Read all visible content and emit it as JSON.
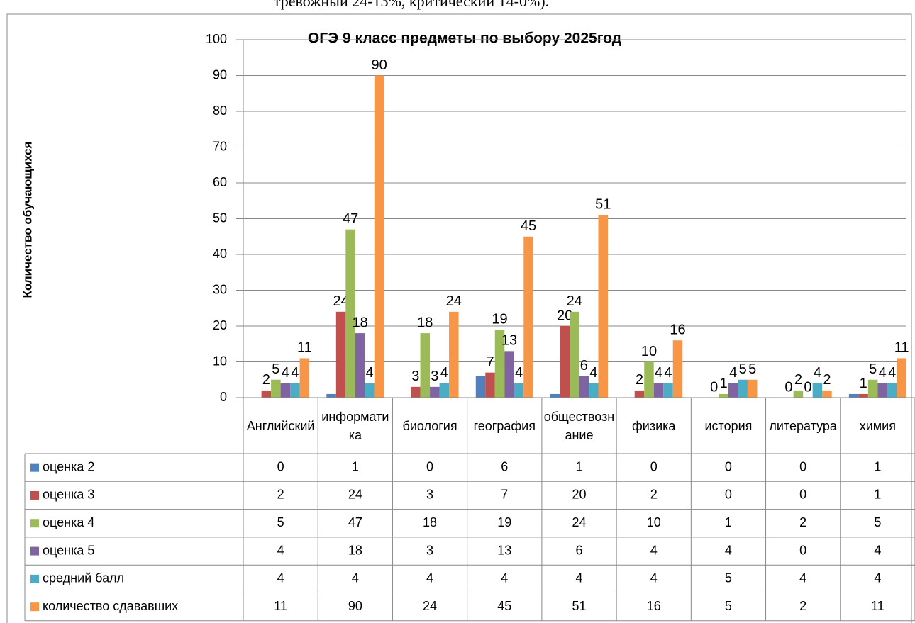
{
  "header_text": "тревожный 24-13%, критический 14-0%).",
  "chart_data": {
    "type": "bar",
    "title": "ОГЭ 9 класс предметы по выбору 2025год",
    "y_label": "Количество обучающихся",
    "categories": [
      "Английский",
      "информатика",
      "биология",
      "география",
      "обществознание",
      "физика",
      "история",
      "литература",
      "химия"
    ],
    "series": [
      {
        "name": "оценка 2",
        "color": "#4f81bd",
        "show_labels": false,
        "values": [
          0,
          1,
          0,
          6,
          1,
          0,
          0,
          0,
          1
        ]
      },
      {
        "name": "оценка 3",
        "color": "#c0504d",
        "show_labels": true,
        "values": [
          2,
          24,
          3,
          7,
          20,
          2,
          0,
          0,
          1
        ]
      },
      {
        "name": "оценка 4",
        "color": "#9bbb59",
        "show_labels": true,
        "values": [
          5,
          47,
          18,
          19,
          24,
          10,
          1,
          2,
          5
        ]
      },
      {
        "name": "оценка 5",
        "color": "#8064a2",
        "show_labels": true,
        "values": [
          4,
          18,
          3,
          13,
          6,
          4,
          4,
          0,
          4
        ]
      },
      {
        "name": "средний балл",
        "color": "#4bacc6",
        "show_labels": true,
        "values": [
          4,
          4,
          4,
          4,
          4,
          4,
          5,
          4,
          4
        ]
      },
      {
        "name": "количество сдававших",
        "color": "#f79646",
        "show_labels": true,
        "values": [
          11,
          90,
          24,
          45,
          51,
          16,
          5,
          2,
          11
        ]
      }
    ],
    "ylim": [
      0,
      100
    ],
    "yticks": [
      0,
      10,
      20,
      30,
      40,
      50,
      60,
      70,
      80,
      90,
      100
    ],
    "grid": true,
    "data_table": true
  }
}
